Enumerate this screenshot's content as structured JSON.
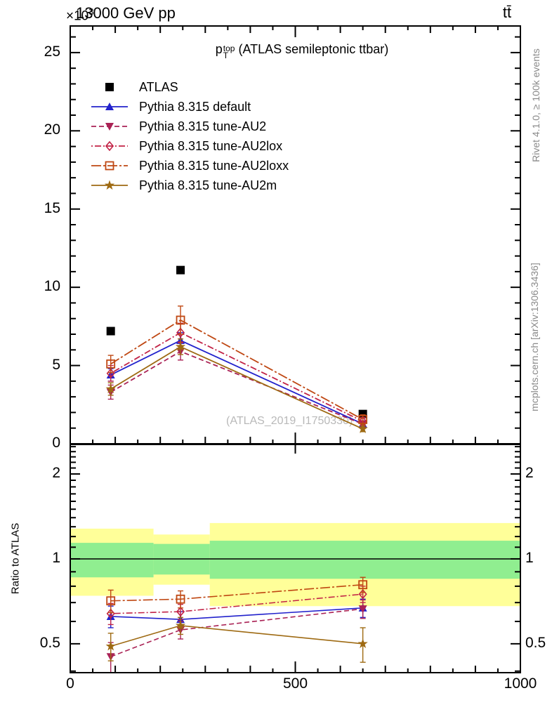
{
  "header": {
    "exponent_base": "×10",
    "exponent_power": "3",
    "title": "13000 GeV pp",
    "process": "tt̄"
  },
  "plot_title": {
    "base": "p",
    "sup": "top",
    "sub": "T",
    "rest": "(ATLAS semileptonic ttbar)"
  },
  "right_margin": {
    "top": "Rivet 4.1.0, ≥ 100k events",
    "bottom": "mcplots.cern.ch [arXiv:1306.3436]"
  },
  "watermark": "(ATLAS_2019_I1750330)",
  "ratio_ylabel": "Ratio to ATLAS",
  "chart_data": {
    "type": "line",
    "title": "p_T^top (ATLAS semileptonic ttbar)",
    "x": [
      90,
      245,
      650
    ],
    "bin_edges": [
      0,
      185,
      310,
      1000
    ],
    "xlim": [
      0,
      1000
    ],
    "xticks": {
      "major": [
        0,
        500,
        1000
      ],
      "medium_step": 100,
      "minor_step": 50
    },
    "frame_color": "#000000",
    "main": {
      "ylim": [
        0,
        26.7
      ],
      "yticks": [
        0,
        5,
        10,
        15,
        20,
        25
      ],
      "unit_exponent": "×10³",
      "series": [
        {
          "name": "ATLAS",
          "color": "#000000",
          "marker": "square-filled",
          "line": "none",
          "values": [
            7.2,
            11.1,
            1.9
          ],
          "errors": [
            0,
            0,
            0
          ]
        },
        {
          "name": "Pythia 8.315 default",
          "color": "#2222cc",
          "marker": "triangle-up",
          "line": "solid",
          "values": [
            4.4,
            6.6,
            1.27
          ],
          "errors": [
            0.4,
            0.5,
            0.2
          ]
        },
        {
          "name": "Pythia 8.315 tune-AU2",
          "color": "#aa2255",
          "marker": "triangle-down",
          "line": "dashed",
          "values": [
            3.3,
            5.9,
            1.26
          ],
          "errors": [
            0.45,
            0.55,
            0.2
          ]
        },
        {
          "name": "Pythia 8.315 tune-AU2lox",
          "color": "#c22346",
          "marker": "diamond-open",
          "line": "dashdot",
          "values": [
            4.5,
            7.1,
            1.43
          ],
          "errors": [
            0.5,
            0.6,
            0.25
          ]
        },
        {
          "name": "Pythia 8.315 tune-AU2loxx",
          "color": "#bf4712",
          "marker": "square-open",
          "line": "dashdot-long",
          "values": [
            5.1,
            7.9,
            1.55
          ],
          "errors": [
            0.55,
            0.9,
            0.3
          ]
        },
        {
          "name": "Pythia 8.315 tune-AU2m",
          "color": "#9e6a12",
          "marker": "star",
          "line": "solid",
          "values": [
            3.5,
            6.2,
            0.95
          ],
          "errors": [
            0.4,
            0.5,
            0.18
          ]
        }
      ]
    },
    "ratio": {
      "scale": "log",
      "ylim": [
        0.395,
        2.545
      ],
      "yticks": [
        0.5,
        1,
        2
      ],
      "reference_line": 1.0,
      "band_colors": {
        "outer": "#ffff99",
        "inner": "#90ee90"
      },
      "bands": [
        {
          "x0": 0,
          "x1": 185,
          "yellow": [
            0.74,
            1.28
          ],
          "green": [
            0.86,
            1.14
          ]
        },
        {
          "x0": 185,
          "x1": 310,
          "yellow": [
            0.81,
            1.22
          ],
          "green": [
            0.88,
            1.13
          ]
        },
        {
          "x0": 310,
          "x1": 1000,
          "yellow": [
            0.68,
            1.34
          ],
          "green": [
            0.85,
            1.16
          ]
        }
      ],
      "series": [
        {
          "name": "Pythia 8.315 default",
          "color": "#2222cc",
          "marker": "triangle-up",
          "line": "solid",
          "values": [
            0.625,
            0.61,
            0.67
          ],
          "errors": [
            0.055,
            0.04,
            0.05
          ]
        },
        {
          "name": "Pythia 8.315 tune-AU2",
          "color": "#aa2255",
          "marker": "triangle-down",
          "line": "dashed",
          "values": [
            0.45,
            0.56,
            0.665
          ],
          "errors": [
            0.055,
            0.04,
            0.05
          ]
        },
        {
          "name": "Pythia 8.315 tune-AU2lox",
          "color": "#c22346",
          "marker": "diamond-open",
          "line": "dashdot",
          "values": [
            0.64,
            0.65,
            0.75
          ],
          "errors": [
            0.055,
            0.04,
            0.05
          ]
        },
        {
          "name": "Pythia 8.315 tune-AU2loxx",
          "color": "#bf4712",
          "marker": "square-open",
          "line": "dashdot-long",
          "values": [
            0.71,
            0.72,
            0.81
          ],
          "errors": [
            0.065,
            0.05,
            0.05
          ]
        },
        {
          "name": "Pythia 8.315 tune-AU2m",
          "color": "#9e6a12",
          "marker": "star",
          "line": "solid",
          "values": [
            0.49,
            0.58,
            0.5
          ],
          "errors": [
            0.055,
            0.04,
            0.07
          ]
        }
      ]
    }
  }
}
